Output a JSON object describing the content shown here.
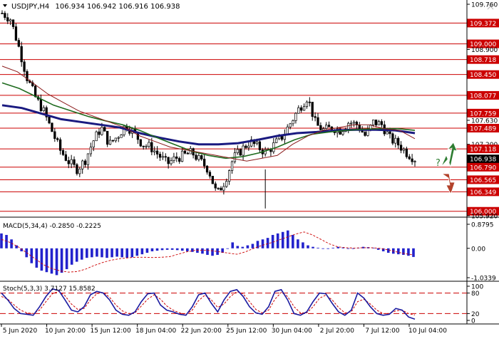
{
  "header": {
    "symbol_label": "USDJPY,H4",
    "ohlc_label": "106.934 106.942 106.916 106.938"
  },
  "macd_label": "MACD(5,34,4) -0.2850 -0.2225",
  "stoch_label": "Stoch(5,3,3) 3.7127 15.8582",
  "question_mark": "?",
  "colors": {
    "level_line": "#cc0000",
    "level_tag": "#cc0000",
    "current_tag": "#000000",
    "ma_fast": "#8b1a1a",
    "ma_mid": "#1e6b1e",
    "ma_slow": "#1a1a80",
    "candle": "#000000",
    "macd_hist": "#2222cc",
    "macd_signal": "#cc0000",
    "stoch_main": "#1a1aa0",
    "stoch_signal": "#cc0000",
    "arrow_up": "#2e7d32",
    "arrow_down": "#b2412a"
  },
  "chart_data": [
    {
      "type": "candlestick",
      "symbol": "USDJPY",
      "timeframe": "H4",
      "ylim": [
        105.92,
        109.76
      ],
      "price_ticks": [
        "109.760",
        "109.372",
        "109.000",
        "108.900",
        "108.718",
        "108.450",
        "108.077",
        "107.630",
        "107.759",
        "107.489",
        "107.200",
        "107.118",
        "106.938",
        "106.790",
        "106.565",
        "106.349",
        "106.000",
        "105.920"
      ],
      "resistance_levels": [
        "109.372",
        "109.000",
        "108.718",
        "108.450",
        "108.077",
        "107.759",
        "107.489",
        "107.118"
      ],
      "support_levels": [
        "106.790",
        "106.565",
        "106.349",
        "106.000"
      ],
      "current_price": "106.938",
      "time_labels": [
        "5 Jun 2020",
        "10 Jun 20:00",
        "15 Jun 12:00",
        "18 Jun 04:00",
        "22 Jun 20:00",
        "25 Jun 12:00",
        "30 Jun 04:00",
        "2 Jul 20:00",
        "7 Jul 12:00",
        "10 Jul 04:00"
      ],
      "close_path": [
        109.55,
        109.45,
        108.95,
        108.4,
        108.05,
        107.8,
        107.45,
        107.1,
        106.9,
        106.75,
        106.9,
        107.25,
        107.5,
        107.2,
        107.35,
        107.55,
        107.4,
        107.2,
        107.15,
        107.0,
        106.85,
        106.95,
        107.0,
        107.05,
        106.9,
        106.75,
        106.3,
        106.55,
        106.95,
        107.1,
        107.25,
        107.15,
        107.05,
        107.2,
        107.35,
        107.6,
        107.85,
        108.05,
        107.55,
        107.45,
        107.5,
        107.45,
        107.6,
        107.55,
        107.35,
        107.6,
        107.55,
        107.3,
        107.2,
        107.05,
        106.94
      ],
      "ma_fast": [
        108.6,
        108.5,
        108.3,
        108.1,
        107.95,
        107.8,
        107.7,
        107.6,
        107.5,
        107.35,
        107.25,
        107.15,
        107.1,
        107.05,
        107.0,
        106.95,
        106.9,
        106.95,
        107.0,
        107.2,
        107.35,
        107.45,
        107.5,
        107.55,
        107.55,
        107.48,
        107.45,
        107.3
      ],
      "ma_mid": [
        108.3,
        108.2,
        108.05,
        107.9,
        107.8,
        107.7,
        107.62,
        107.55,
        107.45,
        107.32,
        107.2,
        107.08,
        107.0,
        106.95,
        106.98,
        107.05,
        107.15,
        107.28,
        107.38,
        107.42,
        107.45,
        107.47,
        107.48,
        107.48,
        107.45
      ],
      "ma_slow": [
        107.9,
        107.85,
        107.75,
        107.65,
        107.6,
        107.55,
        107.5,
        107.4,
        107.32,
        107.25,
        107.2,
        107.2,
        107.22,
        107.28,
        107.35,
        107.4,
        107.42,
        107.45,
        107.46,
        107.46,
        107.45,
        107.4
      ]
    },
    {
      "type": "bar",
      "name": "MACD(5,34,4)",
      "ticks": [
        "0.8795",
        "0.00",
        "-1.0339"
      ],
      "ylim": [
        -1.0339,
        0.8795
      ],
      "values": [
        0.5,
        0.45,
        0.3,
        0.1,
        -0.1,
        -0.3,
        -0.5,
        -0.65,
        -0.75,
        -0.8,
        -0.85,
        -0.9,
        -0.82,
        -0.7,
        -0.55,
        -0.45,
        -0.38,
        -0.32,
        -0.3,
        -0.28,
        -0.3,
        -0.32,
        -0.3,
        -0.28,
        -0.3,
        -0.32,
        -0.3,
        -0.25,
        -0.2,
        -0.15,
        -0.1,
        -0.08,
        -0.06,
        -0.05,
        -0.05,
        -0.06,
        -0.08,
        -0.1,
        -0.12,
        -0.15,
        -0.18,
        -0.22,
        -0.25,
        -0.22,
        -0.15,
        0.0,
        0.2,
        0.08,
        0.05,
        0.1,
        0.15,
        0.25,
        0.3,
        0.35,
        0.45,
        0.5,
        0.55,
        0.6,
        0.45,
        0.3,
        0.2,
        0.1,
        0.05,
        0.02,
        0.0,
        -0.02,
        0.02,
        0.05,
        0.03,
        0.0,
        -0.02,
        0.02,
        0.05,
        0.04,
        0.02,
        -0.05,
        -0.1,
        -0.15,
        -0.18,
        -0.2,
        -0.22,
        -0.25,
        -0.29
      ],
      "signal": [
        0.3,
        0.2,
        0.05,
        -0.15,
        -0.35,
        -0.55,
        -0.68,
        -0.76,
        -0.8,
        -0.78,
        -0.7,
        -0.58,
        -0.48,
        -0.4,
        -0.35,
        -0.32,
        -0.3,
        -0.3,
        -0.31,
        -0.3,
        -0.28,
        -0.2,
        -0.12,
        -0.07,
        -0.06,
        -0.08,
        -0.12,
        -0.16,
        -0.2,
        -0.12,
        0.0,
        0.1,
        0.18,
        0.28,
        0.38,
        0.48,
        0.55,
        0.45,
        0.3,
        0.15,
        0.05,
        0.02,
        0.01,
        0.02,
        0.02,
        0.0,
        -0.05,
        -0.12,
        -0.18,
        -0.22
      ]
    },
    {
      "type": "line",
      "name": "Stoch(5,3,3)",
      "ticks": [
        "100",
        "80",
        "20",
        "0"
      ],
      "ylim": [
        0,
        100
      ],
      "levels": [
        80,
        20
      ],
      "main": [
        80,
        60,
        35,
        20,
        18,
        15,
        40,
        70,
        92,
        88,
        60,
        30,
        25,
        40,
        75,
        85,
        80,
        60,
        30,
        18,
        15,
        25,
        55,
        78,
        80,
        45,
        30,
        25,
        18,
        15,
        40,
        75,
        80,
        50,
        25,
        60,
        85,
        90,
        70,
        40,
        22,
        18,
        40,
        85,
        90,
        60,
        20,
        15,
        25,
        55,
        80,
        78,
        50,
        25,
        15,
        30,
        80,
        65,
        40,
        20,
        15,
        18,
        35,
        30,
        10,
        3.7
      ],
      "signal": [
        70,
        62,
        45,
        30,
        22,
        20,
        30,
        55,
        78,
        85,
        72,
        48,
        32,
        35,
        60,
        78,
        82,
        68,
        45,
        28,
        20,
        22,
        42,
        62,
        75,
        62,
        42,
        30,
        22,
        18,
        30,
        58,
        74,
        60,
        38,
        48,
        70,
        84,
        78,
        55,
        32,
        22,
        30,
        62,
        82,
        70,
        40,
        22,
        22,
        40,
        65,
        74,
        60,
        38,
        22,
        25,
        55,
        62,
        48,
        30,
        20,
        20,
        28,
        30,
        20,
        15.86
      ]
    }
  ]
}
